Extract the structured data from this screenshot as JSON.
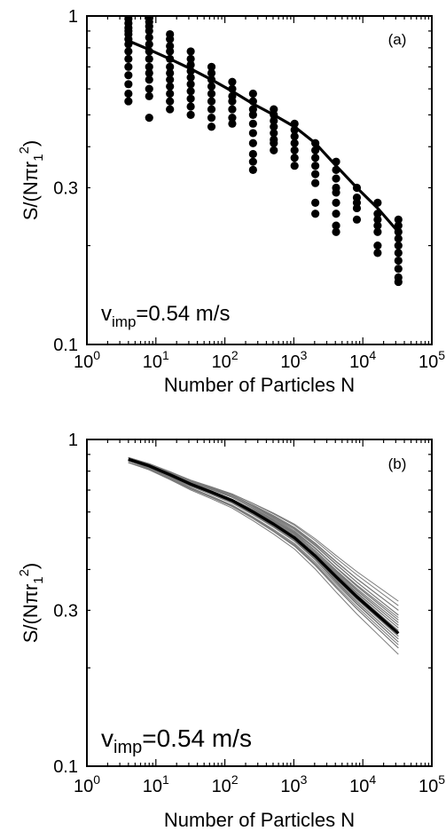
{
  "chart_data": [
    {
      "type": "scatter",
      "panel_label": "(a)",
      "annotation": {
        "main": "v",
        "sub": "imp",
        "rest": "=0.54 m/s"
      },
      "xlabel": "Number of Particles N",
      "ylabel": {
        "main": "S/(Nπr",
        "sub": "1",
        "sup": "2",
        "close": ")"
      },
      "xscale": "log",
      "yscale": "log",
      "xlim": [
        1,
        100000
      ],
      "ylim": [
        0.1,
        1
      ],
      "xticks": [
        {
          "base": "10",
          "exp": "0"
        },
        {
          "base": "10",
          "exp": "1"
        },
        {
          "base": "10",
          "exp": "2"
        },
        {
          "base": "10",
          "exp": "3"
        },
        {
          "base": "10",
          "exp": "4"
        },
        {
          "base": "10",
          "exp": "5"
        }
      ],
      "yticks": [
        {
          "value": 0.1,
          "label": "0.1"
        },
        {
          "value": 0.3,
          "label": "0.3"
        },
        {
          "value": 1,
          "label": "1"
        }
      ],
      "scatter_groups": [
        {
          "x": 4,
          "y": [
            1.0,
            0.98,
            0.95,
            0.92,
            0.9,
            0.88,
            0.85,
            0.82,
            0.78,
            0.74,
            0.7,
            0.66,
            0.62,
            0.58,
            0.55
          ]
        },
        {
          "x": 8,
          "y": [
            0.99,
            0.96,
            0.93,
            0.9,
            0.86,
            0.82,
            0.78,
            0.74,
            0.7,
            0.67,
            0.64,
            0.6,
            0.57,
            0.49
          ]
        },
        {
          "x": 16,
          "y": [
            0.88,
            0.85,
            0.81,
            0.78,
            0.74,
            0.7,
            0.67,
            0.64,
            0.61,
            0.58,
            0.55,
            0.52
          ]
        },
        {
          "x": 32,
          "y": [
            0.78,
            0.74,
            0.71,
            0.68,
            0.65,
            0.62,
            0.59,
            0.56,
            0.53,
            0.5
          ]
        },
        {
          "x": 64,
          "y": [
            0.7,
            0.67,
            0.64,
            0.61,
            0.58,
            0.55,
            0.52,
            0.49,
            0.46
          ]
        },
        {
          "x": 128,
          "y": [
            0.63,
            0.6,
            0.57,
            0.55,
            0.52,
            0.49,
            0.47
          ]
        },
        {
          "x": 256,
          "y": [
            0.58,
            0.55,
            0.52,
            0.5,
            0.47,
            0.44,
            0.41,
            0.38,
            0.36,
            0.34
          ]
        },
        {
          "x": 512,
          "y": [
            0.52,
            0.5,
            0.48,
            0.46,
            0.44,
            0.42,
            0.41,
            0.39
          ]
        },
        {
          "x": 1024,
          "y": [
            0.47,
            0.45,
            0.43,
            0.41,
            0.39,
            0.37,
            0.35
          ]
        },
        {
          "x": 2048,
          "y": [
            0.41,
            0.39,
            0.37,
            0.35,
            0.33,
            0.31,
            0.27,
            0.25
          ]
        },
        {
          "x": 4096,
          "y": [
            0.36,
            0.34,
            0.32,
            0.3,
            0.29,
            0.27,
            0.25,
            0.23,
            0.22
          ]
        },
        {
          "x": 8192,
          "y": [
            0.3,
            0.28,
            0.27,
            0.26,
            0.24
          ]
        },
        {
          "x": 16384,
          "y": [
            0.27,
            0.25,
            0.24,
            0.23,
            0.22,
            0.2,
            0.19
          ]
        },
        {
          "x": 32768,
          "y": [
            0.24,
            0.23,
            0.22,
            0.21,
            0.2,
            0.19,
            0.18,
            0.17,
            0.16,
            0.155
          ]
        }
      ],
      "fit_line": {
        "x": [
          4,
          8,
          16,
          32,
          64,
          128,
          256,
          512,
          1024,
          2048,
          4096,
          8192,
          16384,
          32768
        ],
        "y": [
          0.84,
          0.79,
          0.74,
          0.69,
          0.64,
          0.59,
          0.54,
          0.5,
          0.46,
          0.41,
          0.35,
          0.3,
          0.26,
          0.22
        ]
      }
    },
    {
      "type": "line",
      "panel_label": "(b)",
      "annotation": {
        "main": "v",
        "sub": "imp",
        "rest": "=0.54 m/s"
      },
      "xlabel": "Number of Particles N",
      "ylabel": {
        "main": "S/(Nπr",
        "sub": "1",
        "sup": "2",
        "close": ")"
      },
      "xscale": "log",
      "yscale": "log",
      "xlim": [
        1,
        100000
      ],
      "ylim": [
        0.1,
        1
      ],
      "xticks": [
        {
          "base": "10",
          "exp": "0"
        },
        {
          "base": "10",
          "exp": "1"
        },
        {
          "base": "10",
          "exp": "2"
        },
        {
          "base": "10",
          "exp": "3"
        },
        {
          "base": "10",
          "exp": "4"
        },
        {
          "base": "10",
          "exp": "5"
        }
      ],
      "yticks": [
        {
          "value": 0.1,
          "label": "0.1"
        },
        {
          "value": 0.3,
          "label": "0.3"
        },
        {
          "value": 1,
          "label": "1"
        }
      ],
      "x": [
        4,
        8,
        16,
        32,
        64,
        128,
        256,
        512,
        1024,
        2048,
        4096,
        8192,
        16384,
        32768
      ],
      "mean": [
        0.87,
        0.83,
        0.78,
        0.73,
        0.69,
        0.65,
        0.6,
        0.55,
        0.5,
        0.44,
        0.38,
        0.33,
        0.29,
        0.255
      ],
      "samples_low_end": [
        0.85,
        0.86,
        0.85,
        0.87,
        0.86,
        0.88,
        0.87,
        0.85,
        0.88,
        0.86,
        0.87,
        0.88,
        0.86,
        0.87,
        0.85,
        0.88,
        0.86,
        0.87,
        0.86,
        0.88,
        0.87,
        0.85,
        0.86,
        0.88,
        0.87,
        0.86,
        0.85,
        0.87,
        0.86,
        0.88
      ],
      "samples_high_end": [
        0.22,
        0.23,
        0.24,
        0.245,
        0.25,
        0.255,
        0.26,
        0.265,
        0.27,
        0.275,
        0.28,
        0.29,
        0.3,
        0.31,
        0.23,
        0.24,
        0.25,
        0.26,
        0.27,
        0.28,
        0.29,
        0.235,
        0.245,
        0.255,
        0.265,
        0.275,
        0.285,
        0.3,
        0.32,
        0.25
      ]
    }
  ]
}
